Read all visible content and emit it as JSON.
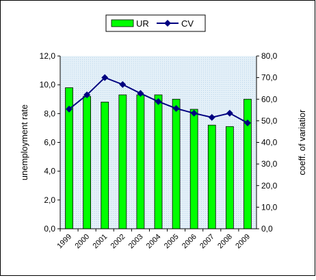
{
  "chart_data": {
    "type": "combo",
    "categories": [
      "1999",
      "2000",
      "2001",
      "2002",
      "2003",
      "2004",
      "2005",
      "2006",
      "2007",
      "2008",
      "2009"
    ],
    "series": [
      {
        "name": "UR",
        "kind": "bar",
        "color": "#00ff00",
        "values": [
          9.8,
          9.2,
          8.8,
          9.3,
          9.3,
          9.3,
          9.0,
          8.3,
          7.2,
          7.1,
          9.0
        ]
      },
      {
        "name": "CV",
        "kind": "line",
        "axis": "y2",
        "color": "#000080",
        "values": [
          55.4,
          62.0,
          70.0,
          66.8,
          62.7,
          58.9,
          55.7,
          53.5,
          51.6,
          53.5,
          49.0
        ]
      }
    ],
    "ylabel": "unemployment rate",
    "y2label": "coeff. of variatior",
    "ylim": [
      0,
      12
    ],
    "yticks": [
      {
        "value": 0,
        "label": "0,0"
      },
      {
        "value": 2,
        "label": "2,0"
      },
      {
        "value": 4,
        "label": "4,0"
      },
      {
        "value": 6,
        "label": "6,0"
      },
      {
        "value": 8,
        "label": "8,0"
      },
      {
        "value": 10,
        "label": "10,0"
      },
      {
        "value": 12,
        "label": "12,0"
      }
    ],
    "y2lim": [
      0,
      80
    ],
    "y2ticks": [
      {
        "value": 0,
        "label": "0,0"
      },
      {
        "value": 10,
        "label": "10,0"
      },
      {
        "value": 20,
        "label": "20,0"
      },
      {
        "value": 30,
        "label": "30,0"
      },
      {
        "value": 40,
        "label": "40,0"
      },
      {
        "value": 50,
        "label": "50,0"
      },
      {
        "value": 60,
        "label": "60,0"
      },
      {
        "value": 70,
        "label": "70,0"
      },
      {
        "value": 80,
        "label": "80,0"
      }
    ]
  }
}
